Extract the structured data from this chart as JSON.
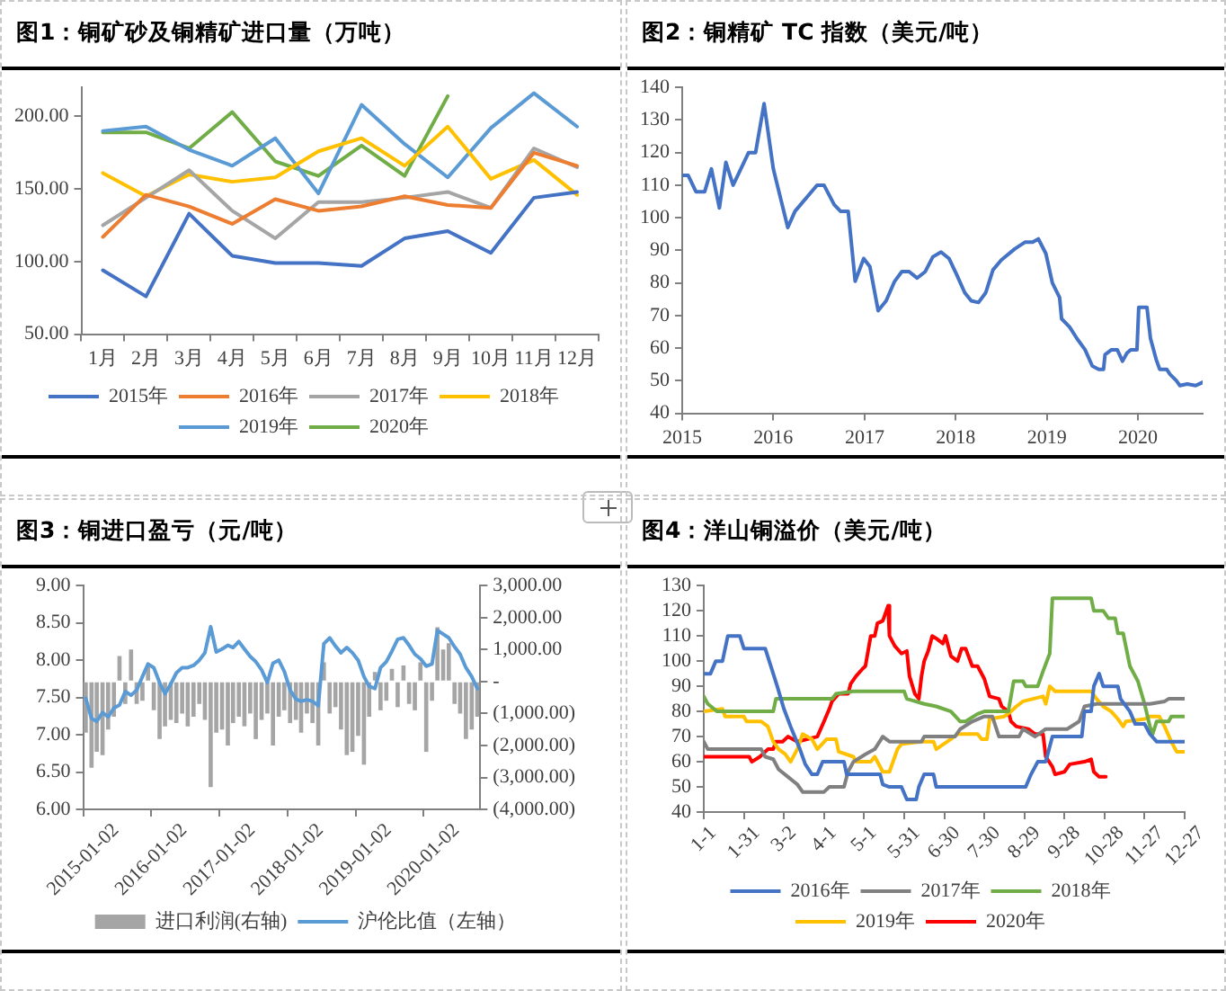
{
  "chart_data": [
    {
      "type": "line",
      "title": "图1：铜矿砂及铜精矿进口量（万吨）",
      "categories": [
        "1月",
        "2月",
        "3月",
        "4月",
        "5月",
        "6月",
        "7月",
        "8月",
        "9月",
        "10月",
        "11月",
        "12月"
      ],
      "ylim": [
        50,
        220
      ],
      "yticks": [
        {
          "value": 50,
          "label": "50.00"
        },
        {
          "value": 100,
          "label": "100.00"
        },
        {
          "value": 150,
          "label": "150.00"
        },
        {
          "value": 200,
          "label": "200.00"
        }
      ],
      "legend": "bottom",
      "series": [
        {
          "name": "2015年",
          "color": "#4472c4",
          "values": [
            94,
            76,
            133,
            104,
            99,
            99,
            97,
            116,
            121,
            106,
            144,
            148
          ]
        },
        {
          "name": "2016年",
          "color": "#ed7d31",
          "values": [
            117,
            146,
            138,
            126,
            143,
            135,
            138,
            145,
            139,
            137,
            175,
            166
          ]
        },
        {
          "name": "2017年",
          "color": "#a5a5a5",
          "values": [
            125,
            144,
            163,
            135,
            116,
            141,
            141,
            144,
            148,
            137,
            178,
            165
          ]
        },
        {
          "name": "2018年",
          "color": "#ffc000",
          "values": [
            161,
            145,
            160,
            155,
            158,
            176,
            185,
            166,
            193,
            157,
            170,
            146
          ]
        },
        {
          "name": "2019年",
          "color": "#5b9bd5",
          "values": [
            190,
            193,
            177,
            166,
            185,
            147,
            208,
            181,
            158,
            192,
            216,
            193
          ]
        },
        {
          "name": "2020年",
          "color": "#70ad47",
          "values": [
            189,
            189,
            178,
            203,
            169,
            159,
            180,
            159,
            214,
            null,
            null,
            null
          ]
        }
      ]
    },
    {
      "type": "line",
      "title": "图2：铜精矿 TC 指数（美元/吨）",
      "x": [
        "2015-01-02",
        "2015-01-25",
        "2015-02-25",
        "2015-04-01",
        "2015-04-28",
        "2015-05-30",
        "2015-06-25",
        "2015-07-24",
        "2015-09-24",
        "2015-10-22",
        "2015-11-25",
        "2016-01-01",
        "2016-02-28",
        "2016-03-28",
        "2016-06-24",
        "2016-07-22",
        "2016-09-01",
        "2016-09-26",
        "2016-10-27",
        "2016-11-24",
        "2016-12-28",
        "2017-01-22",
        "2017-02-24",
        "2017-03-28",
        "2017-05-01",
        "2017-05-30",
        "2017-06-28",
        "2017-07-30",
        "2017-09-01",
        "2017-10-01",
        "2017-11-03",
        "2017-12-05",
        "2018-01-05",
        "2018-02-06",
        "2018-03-04",
        "2018-04-02",
        "2018-05-01",
        "2018-05-30",
        "2018-07-02",
        "2018-08-26",
        "2018-10-05",
        "2018-11-05",
        "2018-11-28",
        "2018-12-28",
        "2019-01-23",
        "2019-02-21",
        "2019-03-01",
        "2019-04-02",
        "2019-05-01",
        "2019-06-03",
        "2019-07-02",
        "2019-07-28",
        "2019-08-16",
        "2019-08-22",
        "2019-09-17",
        "2019-10-10",
        "2019-10-31",
        "2019-11-18",
        "2019-12-03",
        "2019-12-28",
        "2020-01-04",
        "2020-02-06",
        "2020-02-20",
        "2020-03-14",
        "2020-03-28",
        "2020-04-25",
        "2020-05-08",
        "2020-06-03",
        "2020-06-17",
        "2020-07-16",
        "2020-08-19",
        "2020-09-16"
      ],
      "xlim": [
        "2015-01-01",
        "2020-09-16"
      ],
      "xticks": [
        "2015",
        "2016",
        "2017",
        "2018",
        "2019",
        "2020"
      ],
      "ylim": [
        40,
        140
      ],
      "yticks": [
        40,
        50,
        60,
        70,
        80,
        90,
        100,
        110,
        120,
        130,
        140
      ],
      "series": [
        {
          "color": "#4472c4",
          "values": [
            113,
            113,
            108,
            108,
            115,
            103,
            117,
            110,
            120,
            120,
            135,
            115,
            97,
            102,
            110,
            110,
            104,
            102,
            102,
            80.5,
            87.5,
            85,
            71.5,
            74.5,
            80.5,
            83.5,
            83.5,
            81.5,
            83.5,
            88,
            89.5,
            87.5,
            82.5,
            77,
            74.5,
            74,
            77,
            84,
            87,
            90.5,
            92.5,
            92.5,
            93.5,
            89,
            80,
            75.5,
            69,
            66.5,
            63,
            59.5,
            54.5,
            53.5,
            53.5,
            58,
            59.5,
            59.5,
            56,
            58.5,
            59.5,
            59.5,
            72.5,
            72.5,
            63,
            56.5,
            53.5,
            53.5,
            52,
            50,
            48.5,
            49,
            48.5,
            49.5
          ]
        }
      ]
    },
    {
      "type": "bar",
      "title": "图3：铜进口盈亏（元/吨）",
      "x": [
        "2015-01-15",
        "2015-02-15",
        "2015-03-15",
        "2015-04-15",
        "2015-05-15",
        "2015-06-15",
        "2015-07-15",
        "2015-08-15",
        "2015-09-15",
        "2015-10-15",
        "2015-11-15",
        "2015-12-15",
        "2016-01-15",
        "2016-02-15",
        "2016-03-15",
        "2016-04-15",
        "2016-05-15",
        "2016-06-15",
        "2016-07-15",
        "2016-08-15",
        "2016-09-15",
        "2016-10-15",
        "2016-11-15",
        "2016-12-15",
        "2017-01-15",
        "2017-02-15",
        "2017-03-15",
        "2017-04-15",
        "2017-05-15",
        "2017-06-15",
        "2017-07-15",
        "2017-08-15",
        "2017-09-15",
        "2017-10-15",
        "2017-11-15",
        "2017-12-15",
        "2018-01-15",
        "2018-02-15",
        "2018-03-15",
        "2018-04-15",
        "2018-05-15",
        "2018-06-15",
        "2018-07-15",
        "2018-08-15",
        "2018-09-15",
        "2018-10-15",
        "2018-11-15",
        "2018-12-15",
        "2019-01-15",
        "2019-02-15",
        "2019-03-15",
        "2019-04-15",
        "2019-05-15",
        "2019-06-15",
        "2019-07-15",
        "2019-08-15",
        "2019-09-15",
        "2019-10-15",
        "2019-11-15",
        "2019-12-15",
        "2020-01-15",
        "2020-02-15",
        "2020-03-15",
        "2020-04-15",
        "2020-05-15",
        "2020-06-15",
        "2020-07-15",
        "2020-08-15",
        "2020-09-15",
        "2020-10-15"
      ],
      "xlim": [
        "2015-01-01",
        "2020-10-31"
      ],
      "xticks": [
        "2015-01-02",
        "2016-01-02",
        "2017-01-02",
        "2018-01-02",
        "2019-01-02",
        "2020-01-02"
      ],
      "ylim": [
        6,
        9
      ],
      "yticks": [
        {
          "value": 6,
          "label": "6.00"
        },
        {
          "value": 6.5,
          "label": "6.50"
        },
        {
          "value": 7,
          "label": "7.00"
        },
        {
          "value": 7.5,
          "label": "7.50"
        },
        {
          "value": 8,
          "label": "8.00"
        },
        {
          "value": 8.5,
          "label": "8.50"
        },
        {
          "value": 9,
          "label": "9.00"
        }
      ],
      "y2lim": [
        -4000,
        3000
      ],
      "y2ticks": [
        {
          "value": -4000,
          "label": "(4,000.00)"
        },
        {
          "value": -3000,
          "label": "(3,000.00)"
        },
        {
          "value": -2000,
          "label": "(2,000.00)"
        },
        {
          "value": -1000,
          "label": "(1,000.00)"
        },
        {
          "value": 0,
          "label": "-"
        },
        {
          "value": 1000,
          "label": "1,000.00"
        },
        {
          "value": 2000,
          "label": "2,000.00"
        },
        {
          "value": 3000,
          "label": "3,000.00"
        }
      ],
      "legend": "bottom",
      "series": [
        {
          "name": "进口利润(右轴)",
          "type": "bar",
          "axis": "y2",
          "color": "#a5a5a5",
          "values": [
            -1600,
            -2700,
            -2200,
            -2300,
            -1500,
            -1100,
            800,
            -700,
            1000,
            -700,
            -600,
            500,
            -900,
            -1800,
            -1400,
            -1200,
            -1300,
            -1000,
            -1400,
            -1100,
            -700,
            -1200,
            -3300,
            -1600,
            -1500,
            -2000,
            -1300,
            -1100,
            -1400,
            -1000,
            -1800,
            -1200,
            -1000,
            -2000,
            -1100,
            -900,
            -1300,
            -1200,
            -1600,
            -1000,
            -1300,
            -2000,
            600,
            -1000,
            -800,
            -1500,
            -2300,
            -2200,
            -1700,
            -2600,
            -1100,
            300,
            -900,
            -600,
            400,
            -800,
            500,
            -700,
            -900,
            600,
            -2200,
            -600,
            1700,
            1000,
            1200,
            -700,
            -1000,
            -1800,
            -1500,
            -1100
          ]
        },
        {
          "name": "沪伦比值（左轴）",
          "type": "line",
          "color": "#5b9bd5",
          "values": [
            7.49,
            7.22,
            7.18,
            7.3,
            7.24,
            7.36,
            7.4,
            7.58,
            7.53,
            7.6,
            7.78,
            7.95,
            7.9,
            7.7,
            7.55,
            7.68,
            7.83,
            7.9,
            7.9,
            7.93,
            8.0,
            8.1,
            8.45,
            8.11,
            8.15,
            8.2,
            8.17,
            8.25,
            8.15,
            8.05,
            7.98,
            7.87,
            7.7,
            7.96,
            8.0,
            7.85,
            7.6,
            7.48,
            7.45,
            7.47,
            7.45,
            7.39,
            8.22,
            8.3,
            8.19,
            8.1,
            8.17,
            8.1,
            8.0,
            7.78,
            7.65,
            7.62,
            7.9,
            7.98,
            8.12,
            8.28,
            8.3,
            8.2,
            8.08,
            8.02,
            7.92,
            7.95,
            8.4,
            8.35,
            8.3,
            8.18,
            8.08,
            7.9,
            7.78,
            7.62
          ]
        }
      ]
    },
    {
      "type": "line",
      "title": "图4：洋山铜溢价（美元/吨）",
      "xlim": [
        "--01-01",
        "--12-27"
      ],
      "xticks": [
        {
          "value": "--01-01",
          "label": "1-1"
        },
        {
          "value": "--01-31",
          "label": "1-31"
        },
        {
          "value": "--03-02",
          "label": "3-2"
        },
        {
          "value": "--04-01",
          "label": "4-1"
        },
        {
          "value": "--05-01",
          "label": "5-1"
        },
        {
          "value": "--05-31",
          "label": "5-31"
        },
        {
          "value": "--06-30",
          "label": "6-30"
        },
        {
          "value": "--07-30",
          "label": "7-30"
        },
        {
          "value": "--08-29",
          "label": "8-29"
        },
        {
          "value": "--09-28",
          "label": "9-28"
        },
        {
          "value": "--10-28",
          "label": "10-28"
        },
        {
          "value": "--11-27",
          "label": "11-27"
        },
        {
          "value": "--12-27",
          "label": "12-27"
        }
      ],
      "ylim": [
        40,
        130
      ],
      "yticks": [
        40,
        50,
        60,
        70,
        80,
        90,
        100,
        110,
        120,
        130
      ],
      "legend": "bottom",
      "series": [
        {
          "name": "2016年",
          "color": "#4472c4",
          "x": [
            "--01-01",
            "--01-06",
            "--01-10",
            "--01-15",
            "--01-19",
            "--01-28",
            "--01-31",
            "--02-16",
            "--02-19",
            "--02-25",
            "--03-02",
            "--03-07",
            "--03-14",
            "--03-18",
            "--03-23",
            "--03-27",
            "--03-31",
            "--04-16",
            "--04-18",
            "--05-13",
            "--05-15",
            "--05-20",
            "--05-29",
            "--06-02",
            "--06-09",
            "--06-11",
            "--06-15",
            "--06-22",
            "--06-24",
            "--08-30",
            "--09-03",
            "--09-08",
            "--09-14",
            "--09-19",
            "--10-11",
            "--10-13",
            "--10-18",
            "--10-20",
            "--10-24",
            "--10-27",
            "--11-07",
            "--11-09",
            "--11-16",
            "--11-20",
            "--11-27",
            "--12-01",
            "--12-06",
            "--12-15",
            "--12-21",
            "--12-27"
          ],
          "values": [
            95,
            95,
            100,
            100,
            110,
            110,
            105,
            105,
            100,
            90,
            81,
            74,
            65,
            59,
            55,
            55,
            60,
            60,
            55,
            55,
            51,
            50,
            50,
            45,
            45,
            50,
            55,
            55,
            50,
            50,
            55,
            60,
            60,
            70,
            70,
            80,
            80,
            90,
            95,
            90,
            90,
            85,
            80,
            75,
            75,
            71,
            68,
            68,
            68,
            68
          ]
        },
        {
          "name": "2017年",
          "color": "#808080",
          "x": [
            "--01-01",
            "--01-04",
            "--02-13",
            "--02-16",
            "--02-22",
            "--02-26",
            "--03-05",
            "--03-12",
            "--03-16",
            "--04-01",
            "--04-05",
            "--04-16",
            "--04-19",
            "--04-23",
            "--05-02",
            "--05-09",
            "--05-15",
            "--05-20",
            "--06-13",
            "--06-15",
            "--07-08",
            "--07-12",
            "--07-21",
            "--07-30",
            "--08-05",
            "--08-10",
            "--08-25",
            "--08-28",
            "--09-06",
            "--09-14",
            "--09-30",
            "--10-09",
            "--10-13",
            "--10-22",
            "--11-18",
            "--12-01",
            "--12-12",
            "--12-15",
            "--12-27"
          ],
          "values": [
            68,
            65,
            65,
            62,
            61,
            57,
            54,
            51,
            48,
            48,
            50,
            50,
            56,
            60,
            63,
            65,
            70,
            68,
            68,
            70,
            70,
            73,
            76,
            78,
            78,
            70,
            70,
            73,
            70,
            73,
            73,
            76,
            82,
            83,
            83,
            83,
            84,
            85,
            85
          ]
        },
        {
          "name": "2018年",
          "color": "#70ad47",
          "x": [
            "--01-01",
            "--01-04",
            "--01-11",
            "--02-22",
            "--02-24",
            "--03-02",
            "--04-07",
            "--04-10",
            "--04-23",
            "--05-31",
            "--06-02",
            "--06-15",
            "--06-24",
            "--07-05",
            "--07-12",
            "--07-16",
            "--07-25",
            "--07-30",
            "--08-17",
            "--08-21",
            "--08-28",
            "--08-30",
            "--09-08",
            "--09-12",
            "--09-17",
            "--09-19",
            "--10-18",
            "--10-20",
            "--10-27",
            "--10-31",
            "--11-05",
            "--11-07",
            "--11-11",
            "--11-16",
            "--11-22",
            "--11-27",
            "--12-01",
            "--12-03",
            "--12-06",
            "--12-15",
            "--12-17",
            "--12-27"
          ],
          "values": [
            86,
            83,
            80,
            80,
            85,
            85,
            85,
            87,
            88,
            88,
            85,
            83,
            82,
            80,
            76,
            76,
            79,
            80,
            80,
            92,
            92,
            90,
            90,
            96,
            103,
            125,
            125,
            120,
            120,
            117,
            117,
            111,
            111,
            98,
            92,
            83,
            74,
            71,
            76,
            76,
            78,
            78
          ]
        },
        {
          "name": "2019年",
          "color": "#ffc000",
          "x": [
            "--01-01",
            "--01-15",
            "--01-17",
            "--01-31",
            "--02-02",
            "--02-13",
            "--02-18",
            "--02-22",
            "--02-26",
            "--03-03",
            "--03-07",
            "--03-12",
            "--03-16",
            "--03-23",
            "--03-27",
            "--04-03",
            "--04-10",
            "--04-12",
            "--04-23",
            "--04-25",
            "--05-06",
            "--05-09",
            "--05-15",
            "--05-20",
            "--05-26",
            "--05-29",
            "--06-13",
            "--06-22",
            "--06-24",
            "--07-05",
            "--07-10",
            "--07-25",
            "--07-28",
            "--08-01",
            "--08-03",
            "--08-14",
            "--08-19",
            "--08-23",
            "--08-28",
            "--09-12",
            "--09-14",
            "--09-17",
            "--09-21",
            "--10-18",
            "--10-22",
            "--10-27",
            "--11-02",
            "--11-07",
            "--11-11",
            "--11-13",
            "--11-27",
            "--12-01",
            "--12-08",
            "--12-12",
            "--12-17",
            "--12-21",
            "--12-27"
          ],
          "values": [
            80,
            81,
            78,
            78,
            76,
            76,
            74,
            68,
            65,
            63,
            60,
            65,
            71,
            69,
            65,
            69,
            69,
            64,
            62,
            60,
            60,
            62,
            56,
            56,
            65,
            67,
            68,
            68,
            65,
            69,
            71,
            71,
            69,
            69,
            77,
            78,
            80,
            82,
            84,
            86,
            83,
            90,
            88,
            88,
            85,
            82,
            80,
            77,
            74,
            76,
            77,
            78,
            78,
            74,
            68,
            64,
            64
          ]
        },
        {
          "name": "2020年",
          "color": "#ff0000",
          "x": [
            "--01-01",
            "--02-04",
            "--02-06",
            "--02-12",
            "--02-18",
            "--02-22",
            "--02-24",
            "--03-01",
            "--03-05",
            "--03-12",
            "--03-27",
            "--04-01",
            "--04-05",
            "--04-07",
            "--04-12",
            "--04-19",
            "--04-21",
            "--04-25",
            "--04-30",
            "--05-02",
            "--05-04",
            "--05-06",
            "--05-09",
            "--05-11",
            "--05-15",
            "--05-19",
            "--05-20",
            "--05-24",
            "--05-29",
            "--06-02",
            "--06-04",
            "--06-08",
            "--06-11",
            "--06-13",
            "--06-15",
            "--06-18",
            "--06-21",
            "--06-24",
            "--06-29",
            "--07-01",
            "--07-05",
            "--07-10",
            "--07-13",
            "--07-16",
            "--07-21",
            "--07-25",
            "--07-30",
            "--08-03",
            "--08-10",
            "--08-12",
            "--08-17",
            "--08-19",
            "--08-23",
            "--09-01",
            "--09-06",
            "--09-12",
            "--09-14",
            "--09-19",
            "--09-21",
            "--09-28",
            "--10-02",
            "--10-13",
            "--10-18",
            "--10-20",
            "--10-24",
            "--10-29"
          ],
          "values": [
            62,
            62,
            60,
            62,
            65,
            65,
            68,
            68,
            70,
            68,
            70,
            76,
            81,
            84,
            87,
            87,
            91,
            94,
            97,
            98,
            104,
            110,
            110,
            115,
            116,
            122,
            110,
            106,
            103,
            104,
            94,
            87,
            85,
            94,
            100,
            104,
            110,
            109,
            107,
            110,
            102,
            100,
            105,
            105,
            98,
            98,
            93,
            86,
            85,
            82,
            80,
            76,
            74,
            73,
            71,
            71,
            62,
            58,
            55,
            56,
            59,
            60,
            61,
            56,
            54,
            54
          ]
        }
      ]
    }
  ]
}
